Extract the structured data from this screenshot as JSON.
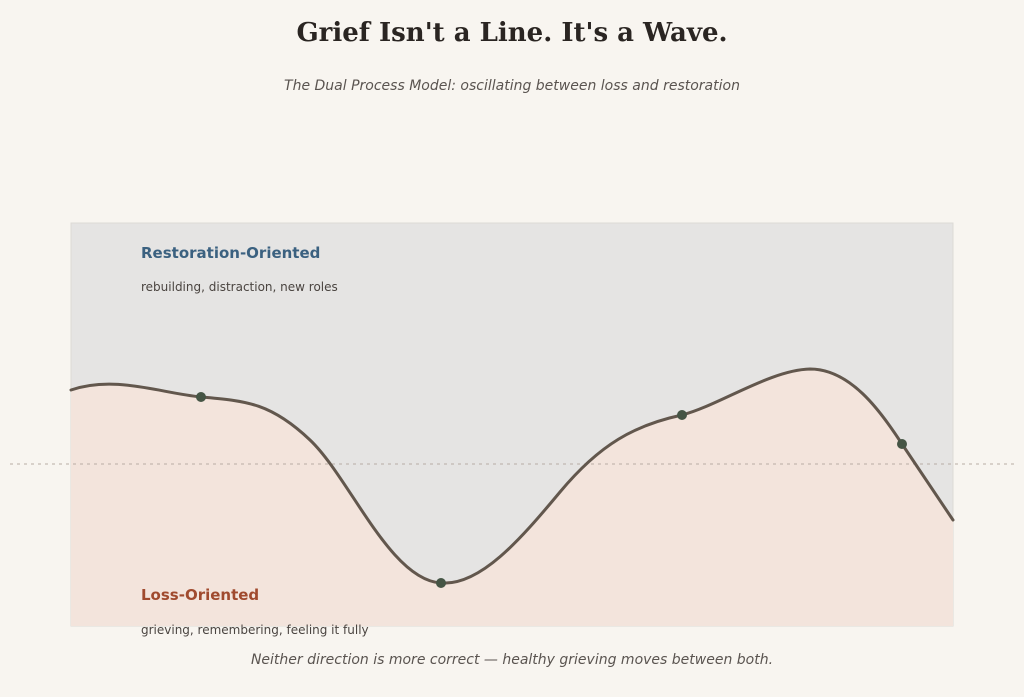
{
  "title": "Grief Isn't a Line. It's a Wave.",
  "subtitle": "The Dual Process Model: oscillating between loss and restoration",
  "restoration": {
    "heading": "Restoration-Oriented",
    "description": "rebuilding, distraction, new roles"
  },
  "loss": {
    "heading": "Loss-Oriented",
    "description": "grieving, remembering, feeling it fully"
  },
  "footnote": "Neither direction is more correct — healthy grieving moves between both.",
  "colors": {
    "background": "#f8f5f0",
    "restoration_zone": "#e5e4e3",
    "loss_zone": "#f3e4dc",
    "restoration_text": "#3b6180",
    "loss_text": "#a04a2e",
    "wave_line": "#62574d",
    "marker": "#455545",
    "baseline": "#b8ada5"
  }
}
